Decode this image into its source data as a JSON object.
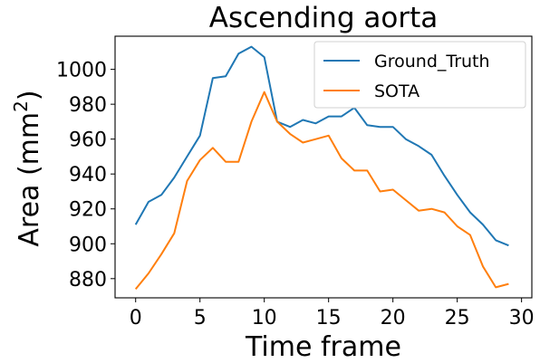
{
  "chart_data": {
    "type": "line",
    "title": "Ascending aorta",
    "xlabel": "Time frame",
    "ylabel": "Area (mm²)",
    "ylabel_base": "Area (mm",
    "ylabel_sup": "2",
    "ylabel_close": ")",
    "xlim": [
      -1.6,
      30.8
    ],
    "ylim": [
      869,
      1019
    ],
    "xticks": [
      0,
      5,
      10,
      15,
      20,
      25,
      30
    ],
    "yticks": [
      880,
      900,
      920,
      940,
      960,
      980,
      1000
    ],
    "grid": false,
    "legend_position": "top-right",
    "x": [
      0,
      1,
      2,
      3,
      4,
      5,
      6,
      7,
      8,
      9,
      10,
      11,
      12,
      13,
      14,
      15,
      16,
      17,
      18,
      19,
      20,
      21,
      22,
      23,
      24,
      25,
      26,
      27,
      28,
      29
    ],
    "series": [
      {
        "name": "Ground_Truth",
        "color": "#1f77b4",
        "values": [
          911,
          924,
          928,
          938,
          950,
          962,
          995,
          996,
          1009,
          1013,
          1007,
          970,
          967,
          971,
          969,
          973,
          973,
          978,
          968,
          967,
          967,
          960,
          956,
          951,
          939,
          928,
          918,
          911,
          902,
          899
        ]
      },
      {
        "name": "SOTA",
        "color": "#ff7f0e",
        "values": [
          874,
          883,
          894,
          906,
          936,
          948,
          955,
          947,
          947,
          970,
          987,
          970,
          963,
          958,
          960,
          962,
          949,
          942,
          942,
          930,
          931,
          925,
          919,
          920,
          918,
          910,
          905,
          887,
          875,
          877
        ]
      }
    ]
  }
}
